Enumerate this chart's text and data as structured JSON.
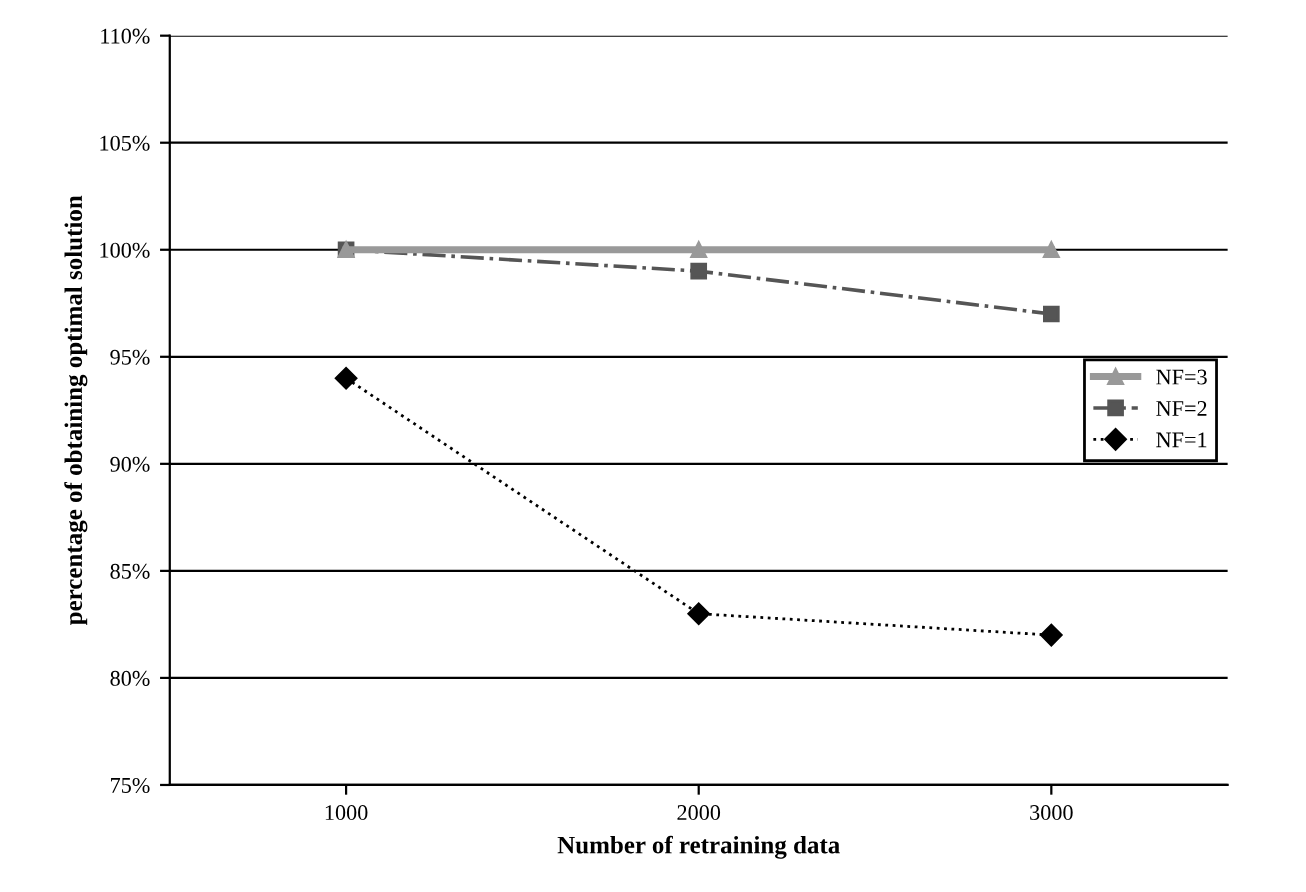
{
  "chart_data": {
    "type": "line",
    "xlabel": "Number of retraining data",
    "ylabel": "percentage of obtaining optimal solution",
    "x": [
      1000,
      2000,
      3000
    ],
    "series": [
      {
        "name": "NF=3",
        "color": "#999999",
        "values": [
          100,
          100,
          100
        ],
        "marker": "triangle",
        "line_style": "solid"
      },
      {
        "name": "NF=2",
        "color": "#555555",
        "values": [
          100,
          99,
          97
        ],
        "marker": "square",
        "line_style": "dashed"
      },
      {
        "name": "NF=1",
        "color": "#000000",
        "values": [
          94,
          83,
          82
        ],
        "marker": "diamond",
        "line_style": "dotted"
      }
    ],
    "xlim": [
      500,
      3500
    ],
    "xticks": [
      1000,
      2000,
      3000
    ],
    "ylim": [
      75,
      110
    ],
    "yticks": [
      {
        "value": 75,
        "label": "75%"
      },
      {
        "value": 80,
        "label": "80%"
      },
      {
        "value": 85,
        "label": "85%"
      },
      {
        "value": 90,
        "label": "90%"
      },
      {
        "value": 95,
        "label": "95%"
      },
      {
        "value": 100,
        "label": "100%"
      },
      {
        "value": 105,
        "label": "105%"
      },
      {
        "value": 110,
        "label": "110%"
      }
    ],
    "grid": "y",
    "legend": "right"
  }
}
